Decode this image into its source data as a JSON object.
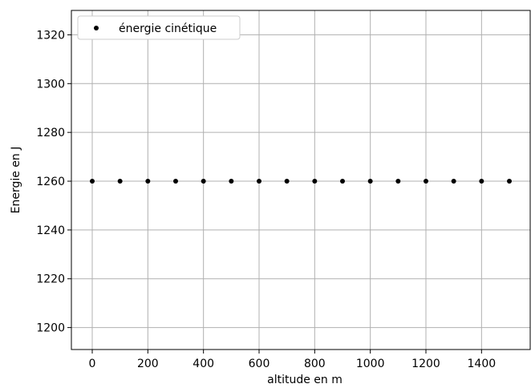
{
  "chart_data": {
    "type": "scatter",
    "title": "",
    "xlabel": "altitude en m",
    "ylabel": "Energie en J",
    "xlim": [
      -75,
      1575
    ],
    "ylim": [
      1191,
      1330
    ],
    "xticks": [
      0,
      200,
      400,
      600,
      800,
      1000,
      1200,
      1400
    ],
    "yticks": [
      1200,
      1220,
      1240,
      1260,
      1280,
      1300,
      1320
    ],
    "grid": true,
    "legend_position": "upper-left",
    "series": [
      {
        "name": "énergie cinétique",
        "marker": "dot",
        "color": "#000000",
        "x": [
          0,
          100,
          200,
          300,
          400,
          500,
          600,
          700,
          800,
          900,
          1000,
          1100,
          1200,
          1300,
          1400,
          1500
        ],
        "y": [
          1260,
          1260,
          1260,
          1260,
          1260,
          1260,
          1260,
          1260,
          1260,
          1260,
          1260,
          1260,
          1260,
          1260,
          1260,
          1260
        ]
      }
    ],
    "colors": {
      "grid": "#b0b0b0",
      "axes": "#000000",
      "point": "#000000"
    }
  }
}
